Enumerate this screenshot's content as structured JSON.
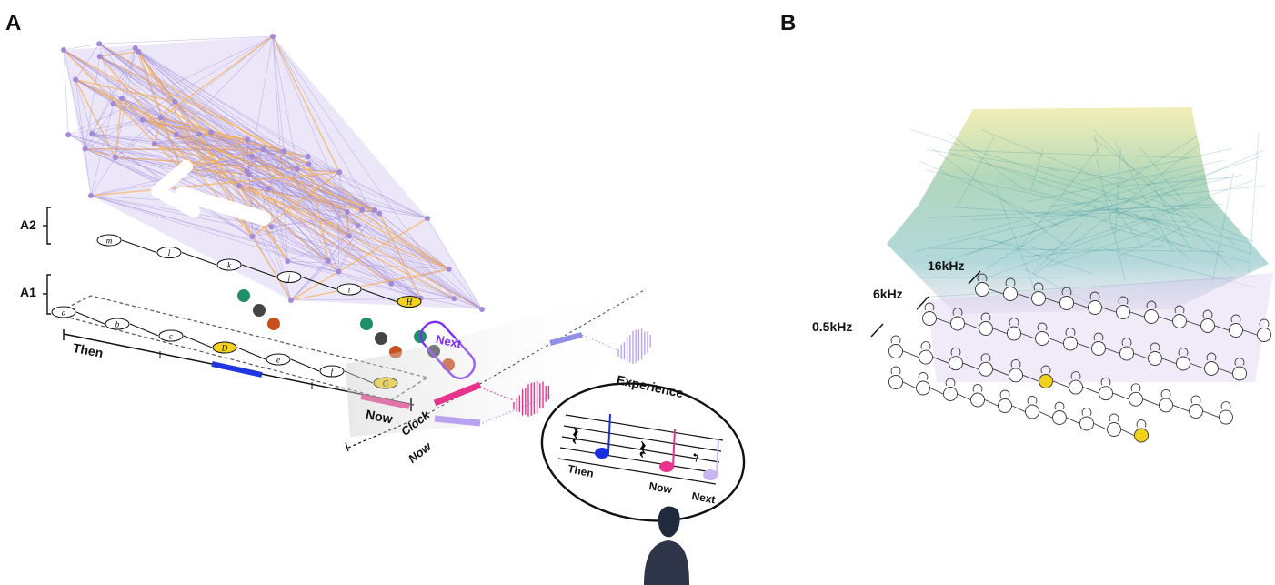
{
  "panels": {
    "a": {
      "letter": "A"
    },
    "b": {
      "letter": "B"
    }
  },
  "panel_a": {
    "layer_labels": {
      "a2": "A2",
      "a1": "A1"
    },
    "timeline": {
      "then": "Then",
      "now": "Now",
      "clock": "Clock",
      "clock_now": "Now"
    },
    "next_label": "Next",
    "experience": {
      "title": "Experience",
      "then": "Then",
      "now": "Now",
      "next": "Next"
    },
    "nodes_a1_row1": [
      "m",
      "l",
      "k",
      "j",
      "i",
      "H"
    ],
    "nodes_a1_row2": [
      "a",
      "b",
      "c",
      "D",
      "e",
      "f",
      "G"
    ]
  },
  "panel_b": {
    "freq_labels": {
      "high": "16kHz",
      "mid": "6kHz",
      "low": "0.5kHz"
    }
  },
  "colors": {
    "network_purple": "#9b86d6",
    "network_orange": "#f6b35a",
    "highlight_yellow": "#f2d21b",
    "next_purple": "#7b2ff7",
    "pink": "#e8338c",
    "blue": "#2036e0",
    "lavender": "#b9a3f0",
    "teal": "#1f8f6a",
    "dark_gray": "#444444",
    "rust": "#c8501e"
  }
}
